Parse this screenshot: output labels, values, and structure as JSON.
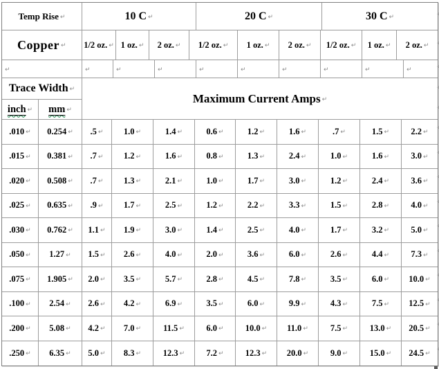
{
  "marks": {
    "paragraph_mark": "↵"
  },
  "colors": {
    "grid_border": "#9c9c9c",
    "outer_border": "#7e7e7e",
    "text": "#000000",
    "formatting_mark": "#8a8a8a",
    "spellcheck_underline": "#0a7a3d"
  },
  "header": {
    "temp_rise_label": "Temp Rise",
    "temp_groups": [
      "10 C",
      "20 C",
      "30 C"
    ],
    "copper_label": "Copper",
    "copper_cols": [
      "1/2 oz.",
      "1 oz.",
      "2 oz.",
      "1/2 oz.",
      "1 oz.",
      "2 oz.",
      "1/2 oz.",
      "1 oz.",
      "2 oz."
    ],
    "trace_width_label": "Trace Width",
    "unit_inch": "inch",
    "unit_mm": "mm",
    "max_current_label": "Maximum Current Amps"
  },
  "chart_data": {
    "type": "table",
    "title": "Maximum Current Amps",
    "row_header_units": [
      "inch",
      "mm"
    ],
    "column_groups": [
      "10 C",
      "20 C",
      "30 C"
    ],
    "columns_per_group": [
      "1/2 oz.",
      "1 oz.",
      "2 oz."
    ],
    "rows": [
      [
        ".010",
        "0.254",
        ".5",
        "1.0",
        "1.4",
        "0.6",
        "1.2",
        "1.6",
        ".7",
        "1.5",
        "2.2"
      ],
      [
        ".015",
        "0.381",
        ".7",
        "1.2",
        "1.6",
        "0.8",
        "1.3",
        "2.4",
        "1.0",
        "1.6",
        "3.0"
      ],
      [
        ".020",
        "0.508",
        ".7",
        "1.3",
        "2.1",
        "1.0",
        "1.7",
        "3.0",
        "1.2",
        "2.4",
        "3.6"
      ],
      [
        ".025",
        "0.635",
        ".9",
        "1.7",
        "2.5",
        "1.2",
        "2.2",
        "3.3",
        "1.5",
        "2.8",
        "4.0"
      ],
      [
        ".030",
        "0.762",
        "1.1",
        "1.9",
        "3.0",
        "1.4",
        "2.5",
        "4.0",
        "1.7",
        "3.2",
        "5.0"
      ],
      [
        ".050",
        "1.27",
        "1.5",
        "2.6",
        "4.0",
        "2.0",
        "3.6",
        "6.0",
        "2.6",
        "4.4",
        "7.3"
      ],
      [
        ".075",
        "1.905",
        "2.0",
        "3.5",
        "5.7",
        "2.8",
        "4.5",
        "7.8",
        "3.5",
        "6.0",
        "10.0"
      ],
      [
        ".100",
        "2.54",
        "2.6",
        "4.2",
        "6.9",
        "3.5",
        "6.0",
        "9.9",
        "4.3",
        "7.5",
        "12.5"
      ],
      [
        ".200",
        "5.08",
        "4.2",
        "7.0",
        "11.5",
        "6.0",
        "10.0",
        "11.0",
        "7.5",
        "13.0",
        "20.5"
      ],
      [
        ".250",
        "6.35",
        "5.0",
        "8.3",
        "12.3",
        "7.2",
        "12.3",
        "20.0",
        "9.0",
        "15.0",
        "24.5"
      ]
    ]
  }
}
